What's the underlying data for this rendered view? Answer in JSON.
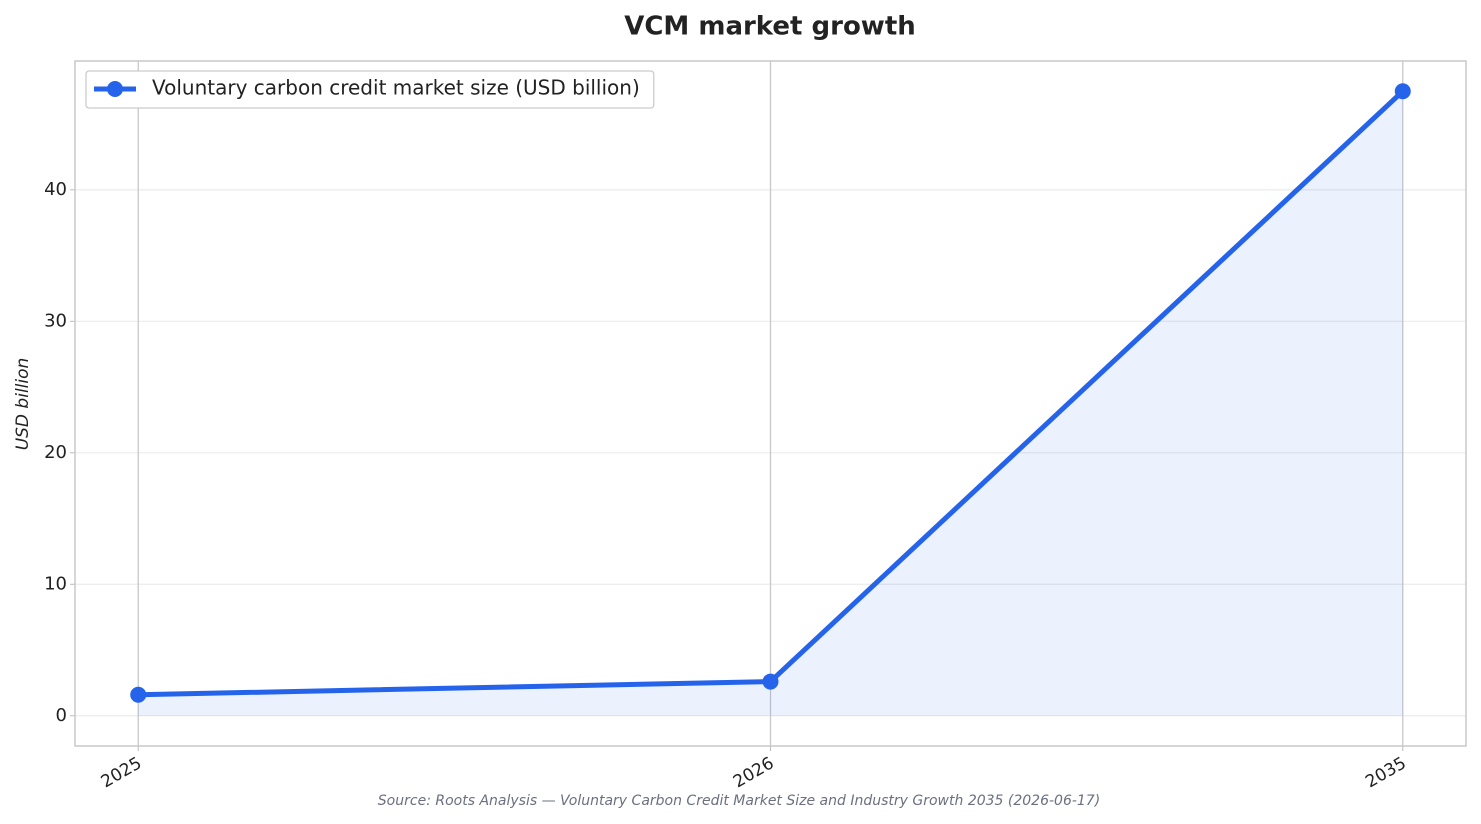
{
  "chart_data": {
    "type": "line",
    "title": "VCM market growth",
    "y_label": "USD billion",
    "source": "Source: Roots Analysis — Voluntary Carbon Credit Market Size and Industry Growth 2035 (2026-06-17)",
    "categories": [
      "2025",
      "2026",
      "2035"
    ],
    "series": [
      {
        "name": "Voluntary carbon credit market size (USD billion)",
        "color": "#2563eb",
        "values": [
          1.6,
          2.6,
          47.5
        ]
      }
    ],
    "ylim": [
      -2.3,
      49.8
    ],
    "yticks": [
      0,
      10,
      20,
      30,
      40
    ],
    "grid": true,
    "area_fill": true,
    "legend": "upper left"
  }
}
